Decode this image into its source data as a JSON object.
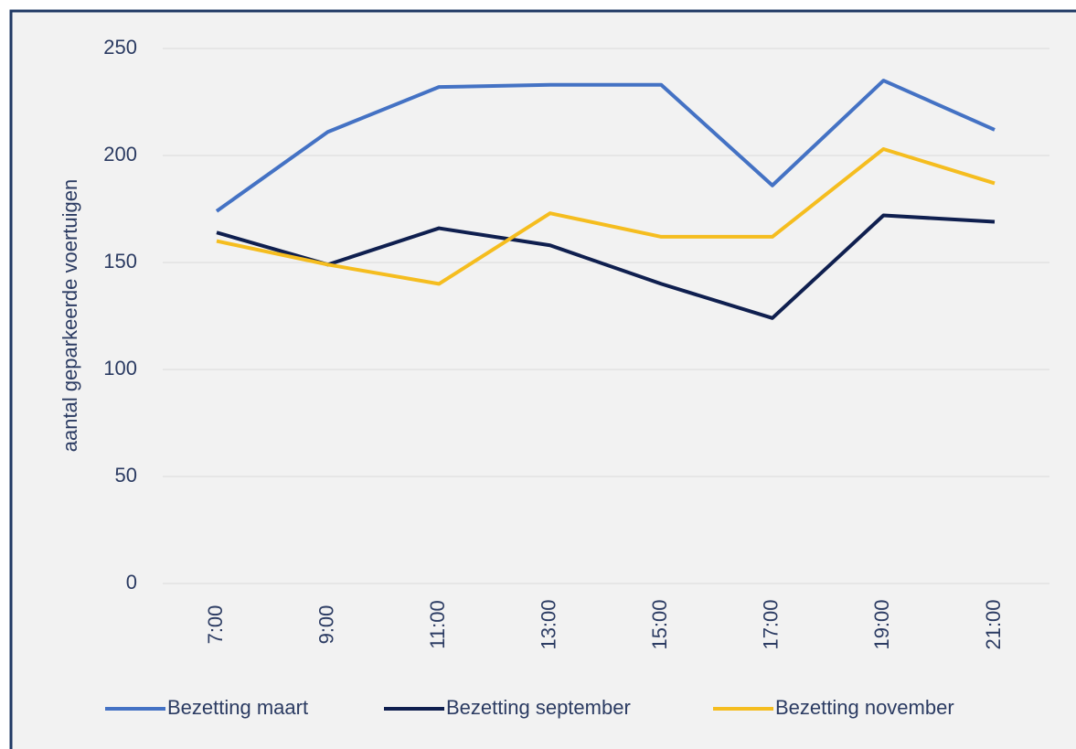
{
  "chart_data": {
    "type": "line",
    "y_label": "aantal geparkeerde voertuigen",
    "categories": [
      "7:00",
      "9:00",
      "11:00",
      "13:00",
      "15:00",
      "17:00",
      "19:00",
      "21:00"
    ],
    "series": [
      {
        "name": "Bezetting maart",
        "color": "#4472c4",
        "values": [
          174,
          211,
          232,
          233,
          233,
          186,
          235,
          212
        ]
      },
      {
        "name": "Bezetting september",
        "color": "#0f1f4f",
        "values": [
          164,
          149,
          166,
          158,
          140,
          124,
          172,
          169
        ]
      },
      {
        "name": "Bezetting november",
        "color": "#f5bd1f",
        "values": [
          160,
          149,
          140,
          173,
          162,
          162,
          203,
          187
        ]
      }
    ],
    "ylim": [
      0,
      250
    ],
    "yticks": [
      0,
      50,
      100,
      150,
      200,
      250
    ],
    "grid": true,
    "legend": "bottom"
  }
}
